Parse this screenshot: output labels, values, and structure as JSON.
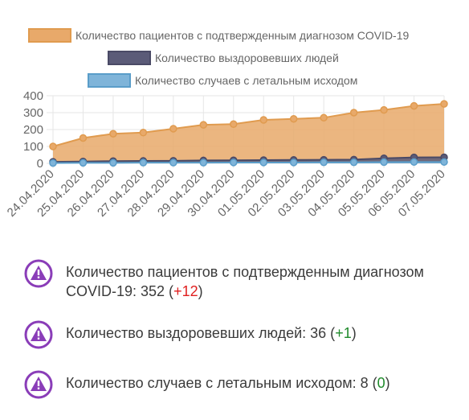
{
  "chart_data": {
    "type": "area",
    "categories": [
      "24.04.2020",
      "25.04.2020",
      "26.04.2020",
      "27.04.2020",
      "28.04.2020",
      "29.04.2020",
      "30.04.2020",
      "01.05.2020",
      "02.05.2020",
      "03.05.2020",
      "04.05.2020",
      "05.05.2020",
      "06.05.2020",
      "07.05.2020"
    ],
    "series": [
      {
        "name": "Количество пациентов с подтвержденным диагнозом COVID-19",
        "values": [
          100,
          150,
          175,
          182,
          205,
          228,
          232,
          257,
          263,
          270,
          300,
          316,
          340,
          352
        ],
        "color": "#e8a96a",
        "border": "#e09b4f"
      },
      {
        "name": "Количество выздоровевших людей",
        "values": [
          9,
          11,
          13,
          14,
          15,
          17,
          18,
          19,
          20,
          21,
          22,
          30,
          35,
          36
        ],
        "color": "#5b5b78",
        "border": "#4a4a66"
      },
      {
        "name": "Количество случаев с летальным исходом",
        "values": [
          2,
          3,
          3,
          4,
          4,
          4,
          5,
          5,
          5,
          6,
          6,
          7,
          8,
          8
        ],
        "color": "#7fb4d9",
        "border": "#5a9dc9"
      }
    ],
    "ylim": [
      0,
      400
    ],
    "yticks": [
      0,
      100,
      200,
      300,
      400
    ],
    "grid": true,
    "legend_position": "top"
  },
  "stats": [
    {
      "label": "Количество пациентов с подтвержденным диагнозом COVID-19: 352 (",
      "delta": "+12",
      "close": ")",
      "icon": "warning-icon"
    },
    {
      "label": "Количество выздоровевших людей: 36 (",
      "delta": "+1",
      "close": ")",
      "icon": "warning-icon"
    },
    {
      "label": "Количество случаев с летальным исходом: 8 (",
      "delta": "0",
      "close": ")",
      "icon": "warning-icon"
    }
  ],
  "colors": {
    "accent_icon": "#8a3db8",
    "delta_up_bad": "#e02020",
    "delta_good": "#1f8a2b"
  }
}
